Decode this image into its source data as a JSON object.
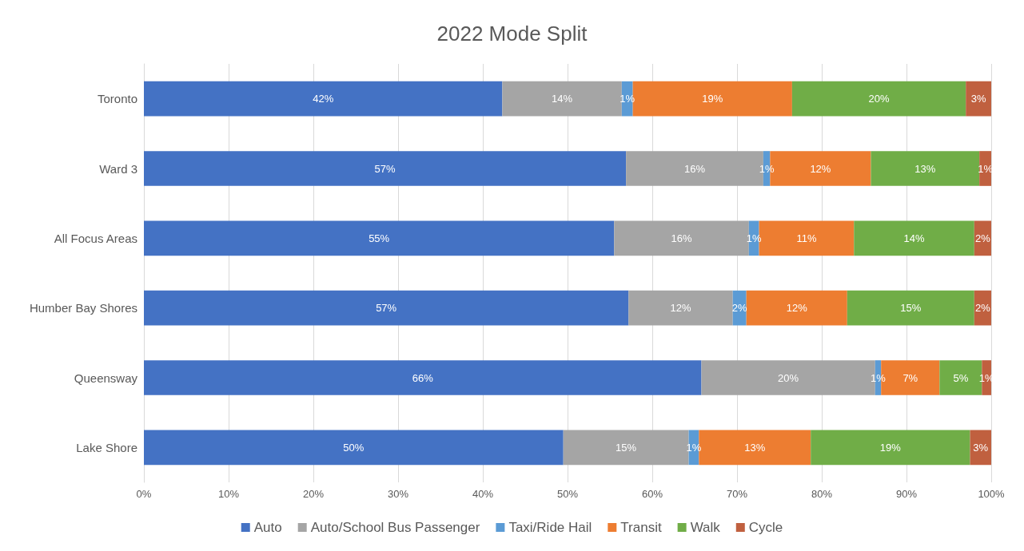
{
  "chart_data": {
    "type": "bar",
    "title": "2022 Mode Split",
    "orientation": "horizontal",
    "stacked": true,
    "categories": [
      "Toronto",
      "Ward 3",
      "All Focus Areas",
      "Humber Bay Shores",
      "Queensway",
      "Lake Shore"
    ],
    "series": [
      {
        "name": "Auto",
        "color": "#4472c4",
        "values": [
          42.3,
          56.9,
          55.5,
          57.2,
          65.8,
          49.5
        ],
        "value_labels": [
          "42%",
          "57%",
          "55%",
          "57%",
          "66%",
          "50%"
        ]
      },
      {
        "name": "Auto/School Bus Passenger",
        "color": "#a5a5a5",
        "values": [
          14.1,
          16.2,
          15.9,
          12.3,
          20.5,
          14.8
        ],
        "value_labels": [
          "14%",
          "16%",
          "16%",
          "12%",
          "20%",
          "15%"
        ]
      },
      {
        "name": "Taxi/Ride Hail",
        "color": "#5b9bd5",
        "values": [
          1.3,
          0.8,
          1.2,
          1.6,
          0.7,
          1.2
        ],
        "value_labels": [
          "1%",
          "1%",
          "1%",
          "2%",
          "1%",
          "1%"
        ]
      },
      {
        "name": "Transit",
        "color": "#ed7d31",
        "values": [
          18.8,
          11.9,
          11.2,
          11.9,
          6.9,
          13.2
        ],
        "value_labels": [
          "19%",
          "12%",
          "11%",
          "12%",
          "7%",
          "13%"
        ]
      },
      {
        "name": "Walk",
        "color": "#70ad47",
        "values": [
          20.5,
          12.8,
          14.2,
          15.0,
          5.0,
          18.8
        ],
        "value_labels": [
          "20%",
          "13%",
          "14%",
          "15%",
          "5%",
          "19%"
        ]
      },
      {
        "name": "Cycle",
        "color": "#c0603f",
        "values": [
          3.0,
          1.4,
          2.0,
          2.0,
          1.1,
          2.5
        ],
        "value_labels": [
          "3%",
          "1%",
          "2%",
          "2%",
          "1%",
          "3%"
        ]
      }
    ],
    "xlim": [
      0,
      100
    ],
    "xticks": [
      {
        "value": 0,
        "label": "0%"
      },
      {
        "value": 10,
        "label": "10%"
      },
      {
        "value": 20,
        "label": "20%"
      },
      {
        "value": 30,
        "label": "30%"
      },
      {
        "value": 40,
        "label": "40%"
      },
      {
        "value": 50,
        "label": "50%"
      },
      {
        "value": 60,
        "label": "60%"
      },
      {
        "value": 70,
        "label": "70%"
      },
      {
        "value": 80,
        "label": "80%"
      },
      {
        "value": 90,
        "label": "90%"
      },
      {
        "value": 100,
        "label": "100%"
      }
    ],
    "grid": "x",
    "legend": "bottom"
  }
}
